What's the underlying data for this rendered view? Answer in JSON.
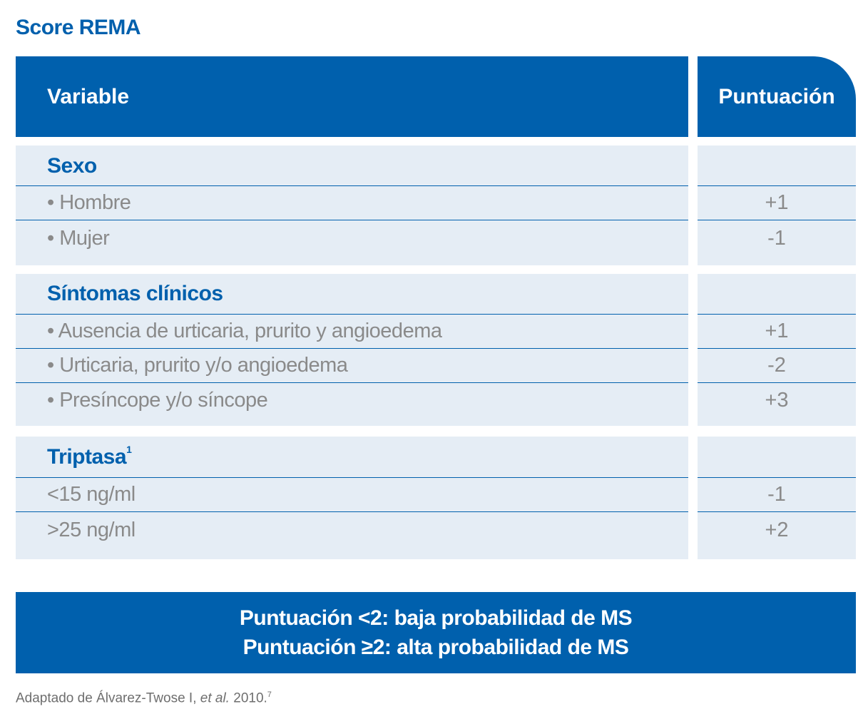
{
  "title": "Score REMA",
  "header": {
    "variable": "Variable",
    "score": "Puntuación"
  },
  "groups": [
    {
      "category": "Sexo",
      "category_sup": "",
      "items": [
        {
          "label": "• Hombre",
          "score": "+1"
        },
        {
          "label": "• Mujer",
          "score": "-1"
        }
      ]
    },
    {
      "category": "Síntomas clínicos",
      "category_sup": "",
      "items": [
        {
          "label": "• Ausencia de urticaria, prurito y angioedema",
          "score": "+1"
        },
        {
          "label": "• Urticaria, prurito y/o angioedema",
          "score": "-2"
        },
        {
          "label": "• Presíncope y/o síncope",
          "score": "+3"
        }
      ]
    },
    {
      "category": "Triptasa",
      "category_sup": "1",
      "items": [
        {
          "label": "<15 ng/ml",
          "score": "-1"
        },
        {
          "label": ">25 ng/ml",
          "score": "+2"
        }
      ]
    }
  ],
  "footer": {
    "line1": "Puntuación <2: baja probabilidad de MS",
    "line2": "Puntuación ≥2: alta probabilidad de MS"
  },
  "source": {
    "prefix": "Adaptado de Álvarez-Twose I, ",
    "etal": "et al.",
    "year": " 2010.",
    "ref": "7"
  }
}
